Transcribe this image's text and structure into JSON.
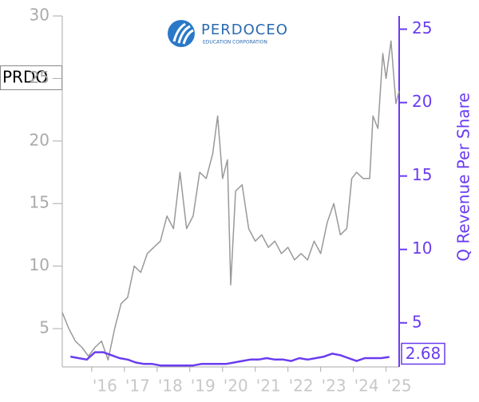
{
  "logo": {
    "name": "PERDOCEO",
    "tagline": "EDUCATION CORPORATION"
  },
  "chart_data": {
    "type": "line",
    "y2_label": "Q Revenue Per Share",
    "xlim": [
      2015.1,
      2025.4
    ],
    "xticks": [
      {
        "value": 2016,
        "label": "'16"
      },
      {
        "value": 2017,
        "label": "'17"
      },
      {
        "value": 2018,
        "label": "'18"
      },
      {
        "value": 2019,
        "label": "'19"
      },
      {
        "value": 2020,
        "label": "'20"
      },
      {
        "value": 2021,
        "label": "'21"
      },
      {
        "value": 2022,
        "label": "'22"
      },
      {
        "value": 2023,
        "label": "'23"
      },
      {
        "value": 2024,
        "label": "'24"
      },
      {
        "value": 2025,
        "label": "'25"
      }
    ],
    "ylim": [
      1.94,
      30
    ],
    "yticks": [
      5,
      10,
      15,
      20,
      25,
      30
    ],
    "y2lim": [
      2,
      25.9
    ],
    "y2ticks": [
      5,
      10,
      15,
      20,
      25
    ],
    "series": [
      {
        "name": "PRDO",
        "color": "#999999",
        "x": [
          2015.1,
          2015.3,
          2015.5,
          2015.7,
          2015.9,
          2016.1,
          2016.3,
          2016.5,
          2016.7,
          2016.9,
          2017.1,
          2017.3,
          2017.5,
          2017.7,
          2017.9,
          2018.1,
          2018.3,
          2018.5,
          2018.7,
          2018.9,
          2019.1,
          2019.3,
          2019.5,
          2019.7,
          2019.85,
          2020.0,
          2020.15,
          2020.25,
          2020.4,
          2020.6,
          2020.8,
          2021.0,
          2021.2,
          2021.4,
          2021.6,
          2021.8,
          2022.0,
          2022.2,
          2022.4,
          2022.6,
          2022.8,
          2023.0,
          2023.2,
          2023.4,
          2023.6,
          2023.8,
          2023.95,
          2024.1,
          2024.3,
          2024.5,
          2024.6,
          2024.75,
          2024.9,
          2025.0,
          2025.15,
          2025.3,
          2025.4
        ],
        "values": [
          6.3,
          5,
          4,
          3.5,
          2.8,
          3.5,
          4,
          2.5,
          5,
          7,
          7.5,
          10,
          9.5,
          11,
          11.5,
          12,
          14,
          13,
          17.5,
          13,
          14,
          17.5,
          17,
          19,
          22,
          17,
          18.5,
          8.5,
          16,
          16.5,
          13,
          12,
          12.5,
          11.5,
          12,
          11,
          11.5,
          10.5,
          11,
          10.5,
          12,
          11,
          13.5,
          15,
          12.5,
          13,
          17,
          17.5,
          17,
          17,
          22,
          21,
          27,
          25,
          28,
          23,
          24
        ]
      },
      {
        "color": "#6a3cf0",
        "axis": "y2",
        "x": [
          2015.35,
          2015.6,
          2015.85,
          2016.1,
          2016.35,
          2016.6,
          2016.85,
          2017.1,
          2017.35,
          2017.6,
          2017.85,
          2018.1,
          2018.35,
          2018.6,
          2018.85,
          2019.1,
          2019.35,
          2019.6,
          2019.85,
          2020.1,
          2020.35,
          2020.6,
          2020.85,
          2021.1,
          2021.35,
          2021.6,
          2021.85,
          2022.1,
          2022.35,
          2022.6,
          2022.85,
          2023.1,
          2023.35,
          2023.6,
          2023.85,
          2024.1,
          2024.35,
          2024.6,
          2024.85,
          2025.1
        ],
        "values": [
          2.7,
          2.6,
          2.5,
          3.0,
          3.0,
          2.8,
          2.6,
          2.5,
          2.3,
          2.2,
          2.2,
          2.1,
          2.1,
          2.1,
          2.1,
          2.1,
          2.2,
          2.2,
          2.2,
          2.2,
          2.3,
          2.4,
          2.5,
          2.5,
          2.6,
          2.5,
          2.5,
          2.4,
          2.6,
          2.5,
          2.6,
          2.7,
          2.9,
          2.8,
          2.6,
          2.4,
          2.6,
          2.6,
          2.6,
          2.68
        ]
      }
    ]
  }
}
